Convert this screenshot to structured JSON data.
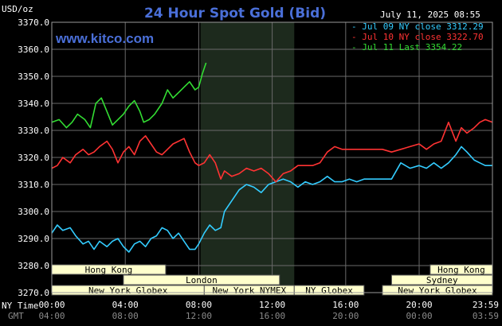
{
  "chart_data": {
    "type": "line",
    "title": "24 Hour Spot Gold (Bid)",
    "unit_label": "USD/oz",
    "site": "www.kitco.com",
    "timestamp": "July 11, 2025 08:55",
    "ylim": [
      3270,
      3370
    ],
    "y_ticks": [
      "3370.0",
      "3360.0",
      "3350.0",
      "3340.0",
      "3330.0",
      "3320.0",
      "3310.0",
      "3300.0",
      "3290.0",
      "3280.0",
      "3270.0"
    ],
    "x_ticks": [
      {
        "ny": "00:00",
        "gmt": "04:00"
      },
      {
        "ny": "04:00",
        "gmt": "08:00"
      },
      {
        "ny": "08:00",
        "gmt": "12:00"
      },
      {
        "ny": "12:00",
        "gmt": "16:00"
      },
      {
        "ny": "16:00",
        "gmt": "20:00"
      },
      {
        "ny": "20:00",
        "gmt": "00:00"
      },
      {
        "ny": "23:59",
        "gmt": "03:59"
      }
    ],
    "x_axis_ny_label": "NY Time",
    "x_axis_gmt_label": "GMT",
    "shaded_range_hours": [
      8.1,
      13.2
    ],
    "legend": [
      {
        "label": "- Jul 09 NY close 3312.29",
        "color": "#33ccff"
      },
      {
        "label": "- Jul 10 NY close 3322.70",
        "color": "#ff3333"
      },
      {
        "label": "- Jul 11 Last 3354.22",
        "color": "#33dd33"
      }
    ],
    "series": [
      {
        "color": "#33ccff",
        "x": [
          0,
          0.3,
          0.6,
          1.0,
          1.3,
          1.7,
          2.0,
          2.3,
          2.6,
          3.0,
          3.3,
          3.6,
          3.9,
          4.2,
          4.5,
          4.8,
          5.1,
          5.4,
          5.7,
          6.0,
          6.3,
          6.6,
          6.9,
          7.2,
          7.5,
          7.8,
          8.0,
          8.3,
          8.6,
          8.9,
          9.2,
          9.4,
          9.8,
          10.2,
          10.6,
          11.0,
          11.4,
          11.8,
          12.2,
          12.6,
          13.0,
          13.4,
          13.8,
          14.2,
          14.6,
          15.0,
          15.4,
          15.8,
          16.2,
          16.6,
          17.0,
          17.5,
          18.0,
          18.5,
          19.0,
          19.5,
          20.0,
          20.4,
          20.8,
          21.2,
          21.6,
          22.0,
          22.3,
          22.6,
          23.0,
          23.3,
          23.6,
          23.99
        ],
        "y": [
          3292,
          3295,
          3293,
          3294,
          3291,
          3288,
          3289,
          3286,
          3289,
          3287,
          3289,
          3290,
          3287,
          3285,
          3288,
          3289,
          3287,
          3290,
          3291,
          3294,
          3293,
          3290,
          3292,
          3289,
          3286,
          3286,
          3288,
          3292,
          3295,
          3293,
          3294,
          3300,
          3304,
          3308,
          3310,
          3309,
          3307,
          3310,
          3311,
          3312,
          3311,
          3309,
          3311,
          3310,
          3311,
          3313,
          3311,
          3311,
          3312,
          3311,
          3312,
          3312,
          3312,
          3312,
          3318,
          3316,
          3317,
          3316,
          3318,
          3316,
          3318,
          3321,
          3324,
          3322,
          3319,
          3318,
          3317,
          3317
        ]
      },
      {
        "color": "#ff3333",
        "x": [
          0,
          0.3,
          0.6,
          1.0,
          1.3,
          1.7,
          2.0,
          2.3,
          2.6,
          3.0,
          3.3,
          3.6,
          3.9,
          4.2,
          4.5,
          4.8,
          5.1,
          5.4,
          5.7,
          6.0,
          6.3,
          6.6,
          6.9,
          7.2,
          7.5,
          7.8,
          8.0,
          8.3,
          8.6,
          8.9,
          9.2,
          9.4,
          9.8,
          10.2,
          10.6,
          11.0,
          11.4,
          11.8,
          12.2,
          12.6,
          13.0,
          13.4,
          13.8,
          14.2,
          14.6,
          15.0,
          15.4,
          15.8,
          16.2,
          16.6,
          17.0,
          17.5,
          18.0,
          18.5,
          19.0,
          19.5,
          20.0,
          20.4,
          20.8,
          21.2,
          21.6,
          22.0,
          22.3,
          22.6,
          23.0,
          23.3,
          23.6,
          23.99
        ],
        "y": [
          3316,
          3317,
          3320,
          3318,
          3321,
          3323,
          3321,
          3322,
          3324,
          3326,
          3323,
          3318,
          3322,
          3324,
          3321,
          3326,
          3328,
          3325,
          3322,
          3321,
          3323,
          3325,
          3326,
          3327,
          3322,
          3318,
          3317,
          3318,
          3321,
          3318,
          3312,
          3315,
          3313,
          3314,
          3316,
          3315,
          3316,
          3314,
          3311,
          3314,
          3315,
          3317,
          3317,
          3317,
          3318,
          3322,
          3324,
          3323,
          3323,
          3323,
          3323,
          3323,
          3323,
          3322,
          3323,
          3324,
          3325,
          3323,
          3325,
          3326,
          3333,
          3326,
          3331,
          3329,
          3331,
          3333,
          3334,
          3333
        ]
      },
      {
        "color": "#33dd33",
        "x": [
          0,
          0.4,
          0.8,
          1.1,
          1.4,
          1.8,
          2.1,
          2.4,
          2.7,
          3.0,
          3.3,
          3.6,
          3.9,
          4.2,
          4.5,
          4.8,
          5.0,
          5.3,
          5.6,
          6.0,
          6.3,
          6.6,
          6.9,
          7.2,
          7.5,
          7.8,
          8.0,
          8.2,
          8.4
        ],
        "y": [
          3333,
          3334,
          3331,
          3333,
          3336,
          3334,
          3331,
          3340,
          3342,
          3337,
          3332,
          3334,
          3336,
          3339,
          3341,
          3337,
          3333,
          3334,
          3336,
          3340,
          3345,
          3342,
          3344,
          3346,
          3348,
          3345,
          3346,
          3351,
          3355
        ]
      }
    ],
    "sessions": [
      {
        "label": "Hong Kong",
        "start": 0,
        "end": 6.2,
        "row": 0
      },
      {
        "label": "London",
        "start": 3.9,
        "end": 12.4,
        "row": 1
      },
      {
        "label": "New York Globex",
        "start": 0,
        "end": 8.3,
        "row": 2
      },
      {
        "label": "New York NYMEX",
        "start": 8.3,
        "end": 13.2,
        "row": 2
      },
      {
        "label": "NY Globex",
        "start": 13.2,
        "end": 17.0,
        "row": 2
      },
      {
        "label": "Hong Kong",
        "start": 20.6,
        "end": 23.99,
        "row": 0
      },
      {
        "label": "Sydney",
        "start": 18.5,
        "end": 23.99,
        "row": 1
      },
      {
        "label": "New York Globex",
        "start": 18.0,
        "end": 23.99,
        "row": 2
      }
    ]
  }
}
